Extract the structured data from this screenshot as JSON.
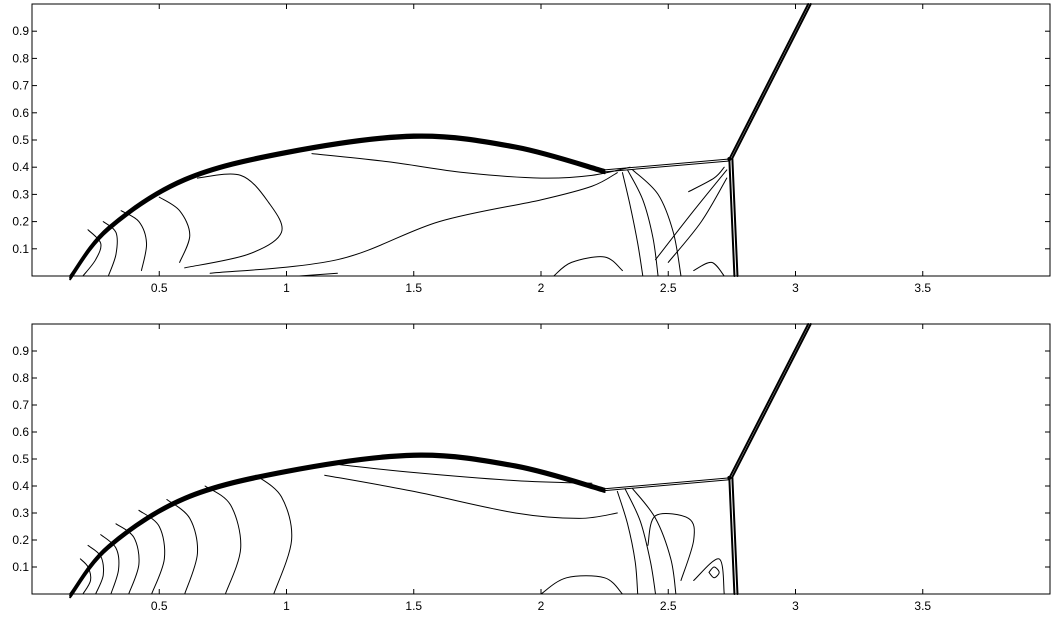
{
  "chart_data": [
    {
      "type": "contour",
      "panel": "top",
      "xlim": [
        0,
        4
      ],
      "ylim": [
        0,
        1
      ],
      "x_ticks": [
        0.5,
        1,
        1.5,
        2,
        2.5,
        3,
        3.5
      ],
      "x_tick_labels": [
        "0.5",
        "1",
        "1.5",
        "2",
        "2.5",
        "3",
        "3.5"
      ],
      "y_ticks": [
        0.1,
        0.2,
        0.3,
        0.4,
        0.5,
        0.6,
        0.7,
        0.8,
        0.9
      ],
      "y_tick_labels": [
        "0.1",
        "0.2",
        "0.3",
        "0.4",
        "0.5",
        "0.6",
        "0.7",
        "0.8",
        "0.9"
      ],
      "grid": false,
      "line_color": "#000000",
      "bow_shock": [
        [
          0.15,
          0.0
        ],
        [
          0.3,
          0.18
        ],
        [
          0.6,
          0.36
        ],
        [
          1.0,
          0.46
        ],
        [
          1.5,
          0.52
        ],
        [
          1.9,
          0.48
        ],
        [
          2.25,
          0.39
        ]
      ],
      "triple_point": [
        2.74,
        0.43
      ],
      "mach_stem": [
        [
          2.74,
          0.43
        ],
        [
          2.76,
          0.0
        ]
      ],
      "incident_shock": [
        [
          2.74,
          0.43
        ],
        [
          3.05,
          1.0
        ]
      ],
      "reflected_shock": [
        [
          2.25,
          0.39
        ],
        [
          2.74,
          0.43
        ]
      ],
      "contours": [
        [
          [
            0.2,
            0.0
          ],
          [
            0.25,
            0.06
          ],
          [
            0.27,
            0.12
          ],
          [
            0.22,
            0.17
          ]
        ],
        [
          [
            0.3,
            0.0
          ],
          [
            0.33,
            0.08
          ],
          [
            0.33,
            0.16
          ],
          [
            0.28,
            0.2
          ]
        ],
        [
          [
            0.43,
            0.02
          ],
          [
            0.45,
            0.12
          ],
          [
            0.42,
            0.2
          ],
          [
            0.35,
            0.24
          ]
        ],
        [
          [
            0.58,
            0.05
          ],
          [
            0.62,
            0.15
          ],
          [
            0.58,
            0.24
          ],
          [
            0.5,
            0.29
          ]
        ],
        [
          [
            0.6,
            0.03
          ],
          [
            0.85,
            0.08
          ],
          [
            0.98,
            0.16
          ],
          [
            0.93,
            0.27
          ],
          [
            0.82,
            0.37
          ],
          [
            0.65,
            0.36
          ]
        ],
        [
          [
            0.7,
            0.01
          ],
          [
            1.2,
            0.06
          ],
          [
            1.6,
            0.2
          ],
          [
            2.0,
            0.28
          ],
          [
            2.2,
            0.33
          ],
          [
            2.3,
            0.38
          ]
        ],
        [
          [
            1.1,
            0.45
          ],
          [
            1.4,
            0.42
          ],
          [
            1.7,
            0.38
          ],
          [
            2.0,
            0.36
          ],
          [
            2.2,
            0.37
          ],
          [
            2.35,
            0.4
          ]
        ],
        [
          [
            2.05,
            0.0
          ],
          [
            2.12,
            0.05
          ],
          [
            2.25,
            0.07
          ],
          [
            2.32,
            0.02
          ]
        ],
        [
          [
            2.32,
            0.38
          ],
          [
            2.35,
            0.26
          ],
          [
            2.38,
            0.12
          ],
          [
            2.4,
            0.0
          ]
        ],
        [
          [
            2.34,
            0.39
          ],
          [
            2.4,
            0.28
          ],
          [
            2.44,
            0.14
          ],
          [
            2.46,
            0.0
          ]
        ],
        [
          [
            2.36,
            0.39
          ],
          [
            2.46,
            0.3
          ],
          [
            2.52,
            0.16
          ],
          [
            2.55,
            0.0
          ]
        ],
        [
          [
            2.45,
            0.06
          ],
          [
            2.6,
            0.24
          ],
          [
            2.73,
            0.39
          ]
        ],
        [
          [
            2.5,
            0.05
          ],
          [
            2.63,
            0.2
          ],
          [
            2.73,
            0.36
          ]
        ],
        [
          [
            2.6,
            0.02
          ],
          [
            2.67,
            0.05
          ],
          [
            2.72,
            0.0
          ]
        ],
        [
          [
            2.58,
            0.31
          ],
          [
            2.68,
            0.36
          ],
          [
            2.72,
            0.4
          ]
        ],
        [
          [
            1.05,
            0.0
          ],
          [
            1.2,
            0.01
          ]
        ]
      ]
    },
    {
      "type": "contour",
      "panel": "bottom",
      "xlim": [
        0,
        4
      ],
      "ylim": [
        0,
        1
      ],
      "x_ticks": [
        0.5,
        1,
        1.5,
        2,
        2.5,
        3,
        3.5
      ],
      "x_tick_labels": [
        "0.5",
        "1",
        "1.5",
        "2",
        "2.5",
        "3",
        "3.5"
      ],
      "y_ticks": [
        0.1,
        0.2,
        0.3,
        0.4,
        0.5,
        0.6,
        0.7,
        0.8,
        0.9
      ],
      "y_tick_labels": [
        "0.1",
        "0.2",
        "0.3",
        "0.4",
        "0.5",
        "0.6",
        "0.7",
        "0.8",
        "0.9"
      ],
      "grid": false,
      "line_color": "#000000",
      "bow_shock": [
        [
          0.15,
          0.0
        ],
        [
          0.3,
          0.18
        ],
        [
          0.6,
          0.36
        ],
        [
          1.0,
          0.46
        ],
        [
          1.5,
          0.52
        ],
        [
          1.9,
          0.48
        ],
        [
          2.25,
          0.39
        ]
      ],
      "triple_point": [
        2.74,
        0.43
      ],
      "mach_stem": [
        [
          2.74,
          0.43
        ],
        [
          2.76,
          0.0
        ]
      ],
      "incident_shock": [
        [
          2.74,
          0.43
        ],
        [
          3.05,
          1.0
        ]
      ],
      "reflected_shock": [
        [
          2.25,
          0.39
        ],
        [
          2.74,
          0.43
        ]
      ],
      "contours": [
        [
          [
            0.2,
            0.0
          ],
          [
            0.23,
            0.05
          ],
          [
            0.22,
            0.1
          ],
          [
            0.19,
            0.13
          ]
        ],
        [
          [
            0.25,
            0.0
          ],
          [
            0.28,
            0.07
          ],
          [
            0.27,
            0.14
          ],
          [
            0.22,
            0.18
          ]
        ],
        [
          [
            0.31,
            0.0
          ],
          [
            0.34,
            0.09
          ],
          [
            0.33,
            0.17
          ],
          [
            0.27,
            0.22
          ]
        ],
        [
          [
            0.38,
            0.0
          ],
          [
            0.42,
            0.11
          ],
          [
            0.4,
            0.21
          ],
          [
            0.33,
            0.26
          ]
        ],
        [
          [
            0.47,
            0.0
          ],
          [
            0.52,
            0.13
          ],
          [
            0.5,
            0.25
          ],
          [
            0.42,
            0.31
          ]
        ],
        [
          [
            0.6,
            0.0
          ],
          [
            0.65,
            0.15
          ],
          [
            0.62,
            0.28
          ],
          [
            0.53,
            0.35
          ]
        ],
        [
          [
            0.76,
            0.0
          ],
          [
            0.82,
            0.17
          ],
          [
            0.78,
            0.33
          ],
          [
            0.68,
            0.4
          ]
        ],
        [
          [
            0.95,
            0.0
          ],
          [
            1.02,
            0.2
          ],
          [
            0.98,
            0.36
          ],
          [
            0.88,
            0.44
          ]
        ],
        [
          [
            1.15,
            0.44
          ],
          [
            1.5,
            0.38
          ],
          [
            1.9,
            0.3
          ],
          [
            2.15,
            0.28
          ],
          [
            2.3,
            0.3
          ]
        ],
        [
          [
            1.2,
            0.48
          ],
          [
            1.5,
            0.45
          ],
          [
            1.9,
            0.42
          ],
          [
            2.2,
            0.41
          ]
        ],
        [
          [
            2.3,
            0.38
          ],
          [
            2.34,
            0.26
          ],
          [
            2.37,
            0.12
          ],
          [
            2.38,
            0.0
          ]
        ],
        [
          [
            2.33,
            0.39
          ],
          [
            2.39,
            0.27
          ],
          [
            2.43,
            0.12
          ],
          [
            2.45,
            0.0
          ]
        ],
        [
          [
            2.36,
            0.39
          ],
          [
            2.45,
            0.28
          ],
          [
            2.51,
            0.13
          ],
          [
            2.53,
            0.0
          ]
        ],
        [
          [
            2.0,
            0.0
          ],
          [
            2.1,
            0.06
          ],
          [
            2.25,
            0.06
          ],
          [
            2.32,
            0.0
          ]
        ],
        [
          [
            2.55,
            0.05
          ],
          [
            2.6,
            0.2
          ],
          [
            2.58,
            0.28
          ],
          [
            2.45,
            0.29
          ],
          [
            2.42,
            0.18
          ]
        ],
        [
          [
            2.6,
            0.05
          ],
          [
            2.7,
            0.13
          ],
          [
            2.72,
            0.0
          ]
        ],
        [
          [
            2.66,
            0.08
          ],
          [
            2.68,
            0.06
          ],
          [
            2.7,
            0.08
          ],
          [
            2.68,
            0.1
          ],
          [
            2.66,
            0.08
          ]
        ]
      ]
    }
  ]
}
